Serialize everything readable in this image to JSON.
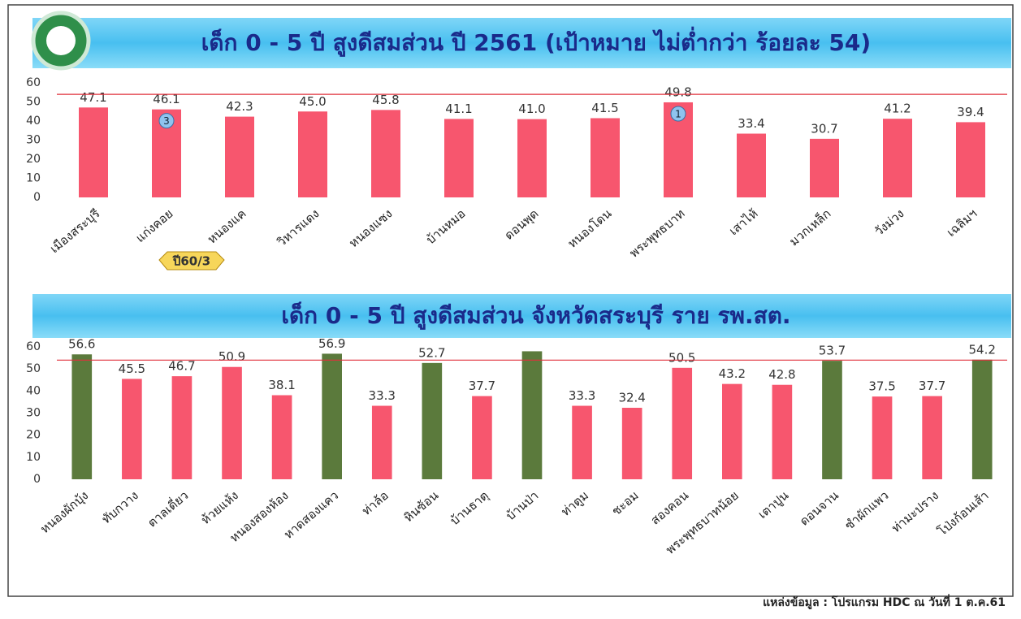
{
  "chart_data": [
    {
      "type": "bar",
      "title": "เด็ก 0 - 5 ปี สูงดีสมส่วน ปี 2561 (เป้าหมาย ไม่ต่ำกว่า ร้อยละ 54)",
      "categories": [
        "เมืองสระบุรี",
        "แก่งคอย",
        "หนองแค",
        "วิหารแดง",
        "หนองแซง",
        "บ้านหมอ",
        "ดอนพุด",
        "หนองโดน",
        "พระพุทธบาท",
        "เสาไห้",
        "มวกเหล็ก",
        "วังม่วง",
        "เฉลิมฯ"
      ],
      "values": [
        47.1,
        46.1,
        42.3,
        45.0,
        45.8,
        41.1,
        41.0,
        41.5,
        49.8,
        33.4,
        30.7,
        41.2,
        39.4
      ],
      "value_labels": [
        "47.1",
        "46.1",
        "42.3",
        "45.0",
        "45.8",
        "41.1",
        "41.0",
        "41.5",
        "49.8",
        "33.4",
        "30.7",
        "41.2",
        "39.4"
      ],
      "badges": [
        null,
        "3",
        null,
        null,
        null,
        null,
        null,
        null,
        "1",
        null,
        null,
        null,
        null
      ],
      "colors": [
        "#f7566e",
        "#f7566e",
        "#f7566e",
        "#f7566e",
        "#f7566e",
        "#f7566e",
        "#f7566e",
        "#f7566e",
        "#f7566e",
        "#f7566e",
        "#f7566e",
        "#f7566e",
        "#f7566e"
      ],
      "target": 54,
      "note": "ปี60/3",
      "ylim": [
        0,
        60
      ],
      "yticks": [
        0,
        10,
        20,
        30,
        40,
        50,
        60
      ]
    },
    {
      "type": "bar",
      "title": "เด็ก 0 - 5 ปี สูงดีสมส่วน จังหวัดสระบุรี ราย รพ.สต.",
      "categories": [
        "หนองผักบุ้ง",
        "ทับกวาง",
        "ตาลเดี่ยว",
        "ห้วยแห้ง",
        "หนองสองห้อง",
        "หาดสองแคว",
        "ท่าล้อ",
        "หินซ้อน",
        "บ้านธาตุ",
        "บ้านป่า",
        "ท่าตูม",
        "ชะอม",
        "สองคอน",
        "พระพุทธบาทน้อย",
        "เตาปูน",
        "ดอนจาน",
        "ซำผักแพว",
        "ท่ามะปราง",
        "โป่งก้อนเส้า"
      ],
      "values": [
        56.6,
        45.5,
        46.7,
        50.9,
        38.1,
        56.9,
        33.3,
        52.7,
        37.7,
        58,
        33.3,
        32.4,
        50.5,
        43.2,
        42.8,
        53.7,
        37.5,
        37.7,
        54.2
      ],
      "value_labels": [
        "56.6",
        "45.5",
        "46.7",
        "50.9",
        "38.1",
        "56.9",
        "33.3",
        "52.7",
        "37.7",
        null,
        "33.3",
        "32.4",
        "50.5",
        "43.2",
        "42.8",
        "53.7",
        "37.5",
        "37.7",
        "54.2"
      ],
      "colors": [
        "#5b7a3c",
        "#f7566e",
        "#f7566e",
        "#f7566e",
        "#f7566e",
        "#5b7a3c",
        "#f7566e",
        "#5b7a3c",
        "#f7566e",
        "#5b7a3c",
        "#f7566e",
        "#f7566e",
        "#f7566e",
        "#f7566e",
        "#f7566e",
        "#5b7a3c",
        "#f7566e",
        "#f7566e",
        "#5b7a3c"
      ],
      "target": 54,
      "ylim": [
        0,
        60
      ],
      "yticks": [
        0,
        10,
        20,
        30,
        40,
        50,
        60
      ]
    }
  ],
  "source": "แหล่งข้อมูล : โปรแกรม HDC ณ วันที่ 1 ต.ค.61"
}
